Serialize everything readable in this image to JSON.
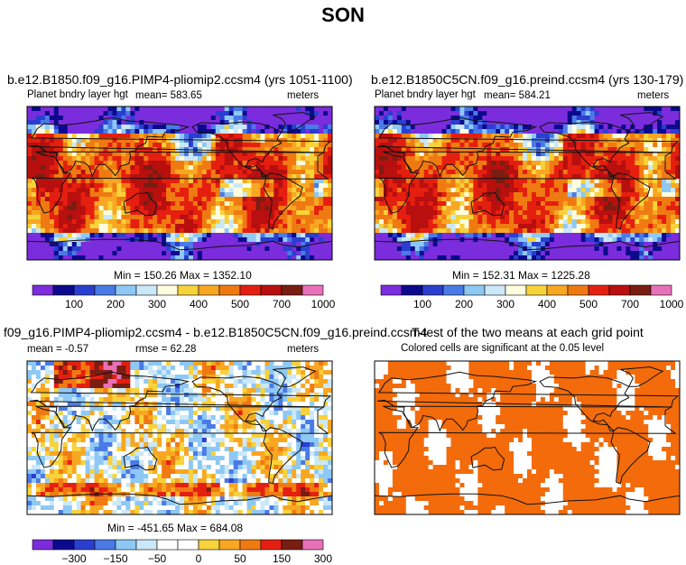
{
  "page_title": "SON",
  "panels": [
    {
      "title": "b.e12.B1850.f09_g16.PIMP4-pliomip2.ccsm4 (yrs 1051-1100)",
      "left_label": "Planet bndry layer hgt",
      "mean_label": "mean= 583.65",
      "units": "meters",
      "minmax": "Min = 150.26 Max = 1352.10"
    },
    {
      "title": "b.e12.B1850C5CN.f09_g16.preind.ccsm4 (yrs 130-179)",
      "left_label": "Planet bndry layer hgt",
      "mean_label": "mean= 584.21",
      "units": "meters",
      "minmax": "Min = 152.31 Max = 1225.28"
    },
    {
      "title": "f09_g16.PIMP4-pliomip2.ccsm4 - b.e12.B1850C5CN.f09_g16.preind.ccsm4",
      "left_label": "mean =   -0.57",
      "mean_label": "rmse =   62.28",
      "units": "meters",
      "minmax": "Min = -451.65 Max = 684.08"
    },
    {
      "title": "T-test of the two means at each grid point",
      "left_label": "Colored cells are significant at the 0.05 level"
    }
  ],
  "chart_data": [
    {
      "type": "heatmap",
      "title": "b.e12.B1850.f09_g16.PIMP4-pliomip2.ccsm4 (yrs 1051-1100)",
      "mean": 583.65,
      "min": 150.26,
      "max": 1352.1,
      "colorbar_levels": [
        100,
        200,
        300,
        400,
        500,
        700,
        1000
      ],
      "colorbar_tick_labels": [
        "100",
        "200",
        "300",
        "400",
        "500",
        "700",
        "1000"
      ],
      "colorbar_colors": [
        "#7b2cdc",
        "#0c0a8c",
        "#2a3fd0",
        "#4a7ae6",
        "#8ec8f4",
        "#cbe8f8",
        "#fffde0",
        "#f7d23a",
        "#f8a722",
        "#f07a12",
        "#e51f10",
        "#b80f0f",
        "#7a1d12",
        "#e870b8"
      ]
    },
    {
      "type": "heatmap",
      "title": "b.e12.B1850C5CN.f09_g16.preind.ccsm4 (yrs 130-179)",
      "mean": 584.21,
      "min": 152.31,
      "max": 1225.28,
      "colorbar_levels": [
        100,
        200,
        300,
        400,
        500,
        700,
        1000
      ],
      "colorbar_tick_labels": [
        "100",
        "200",
        "300",
        "400",
        "500",
        "700",
        "1000"
      ],
      "colorbar_colors": [
        "#7b2cdc",
        "#0c0a8c",
        "#2a3fd0",
        "#4a7ae6",
        "#8ec8f4",
        "#cbe8f8",
        "#fffde0",
        "#f7d23a",
        "#f8a722",
        "#f07a12",
        "#e51f10",
        "#b80f0f",
        "#7a1d12",
        "#e870b8"
      ]
    },
    {
      "type": "heatmap",
      "title": "f09_g16.PIMP4-pliomip2.ccsm4 - b.e12.B1850C5CN.f09_g16.preind.ccsm4",
      "mean": -0.57,
      "rmse": 62.28,
      "min": -451.65,
      "max": 684.08,
      "colorbar_levels": [
        -300,
        -150,
        -50,
        0,
        50,
        150,
        300
      ],
      "colorbar_tick_labels": [
        "−300",
        "−150",
        "−50",
        "0",
        "50",
        "150",
        "300"
      ],
      "colorbar_colors": [
        "#7b2cdc",
        "#0c0a8c",
        "#2a3fd0",
        "#4a7ae6",
        "#8ec8f4",
        "#cbe8f8",
        "#ffffff",
        "#ffffff",
        "#f7d23a",
        "#f8a722",
        "#f07a12",
        "#e51f10",
        "#7a1d12",
        "#e870b8"
      ]
    },
    {
      "type": "heatmap",
      "title": "T-test of the two means at each grid point",
      "significance_level": 0.05,
      "significant_color": "#f36b0a"
    }
  ]
}
